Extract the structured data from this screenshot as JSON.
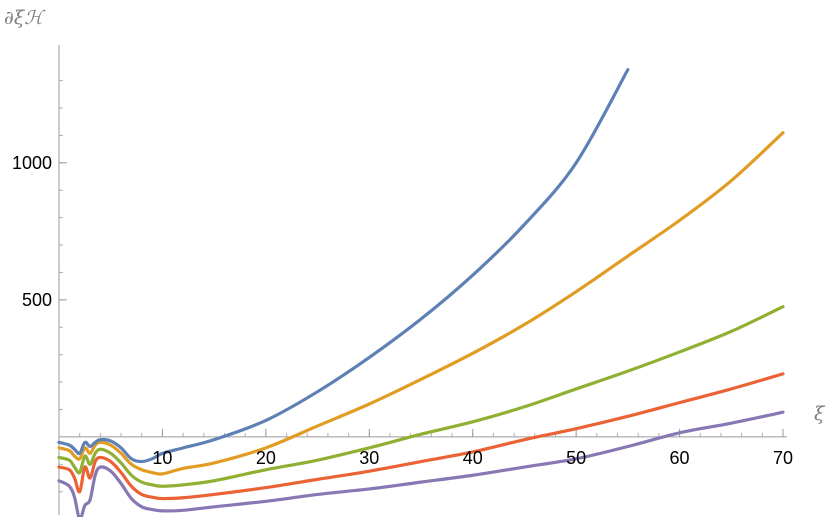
{
  "chart_data": {
    "type": "line",
    "xlabel": "ξ",
    "ylabel": "∂ξℋ",
    "xlim": [
      0,
      70
    ],
    "ylim": [
      -285,
      1430
    ],
    "x_ticks": [
      10,
      20,
      30,
      40,
      50,
      60,
      70
    ],
    "y_ticks": [
      500,
      1000
    ],
    "grid": false,
    "legend": "none",
    "series": [
      {
        "color": "#5E81B5",
        "points": [
          [
            0,
            -20
          ],
          [
            1,
            -30
          ],
          [
            1.5,
            -45
          ],
          [
            2,
            -60
          ],
          [
            2.5,
            -20
          ],
          [
            3,
            -35
          ],
          [
            3.5,
            -20
          ],
          [
            4,
            -10
          ],
          [
            5,
            -15
          ],
          [
            6,
            -40
          ],
          [
            7,
            -80
          ],
          [
            8,
            -90
          ],
          [
            9,
            -80
          ],
          [
            10,
            -60
          ],
          [
            12,
            -40
          ],
          [
            15,
            -10
          ],
          [
            20,
            60
          ],
          [
            25,
            165
          ],
          [
            30,
            290
          ],
          [
            35,
            430
          ],
          [
            40,
            590
          ],
          [
            45,
            775
          ],
          [
            50,
            1000
          ],
          [
            55,
            1340
          ]
        ]
      },
      {
        "color": "#E19C24",
        "points": [
          [
            0,
            -40
          ],
          [
            1,
            -50
          ],
          [
            1.5,
            -70
          ],
          [
            2,
            -80
          ],
          [
            2.5,
            -40
          ],
          [
            3,
            -60
          ],
          [
            3.5,
            -30
          ],
          [
            4,
            -20
          ],
          [
            5,
            -30
          ],
          [
            6,
            -60
          ],
          [
            7,
            -100
          ],
          [
            8,
            -120
          ],
          [
            9,
            -130
          ],
          [
            10,
            -135
          ],
          [
            12,
            -115
          ],
          [
            15,
            -95
          ],
          [
            20,
            -40
          ],
          [
            25,
            40
          ],
          [
            30,
            120
          ],
          [
            35,
            210
          ],
          [
            40,
            305
          ],
          [
            45,
            410
          ],
          [
            50,
            530
          ],
          [
            55,
            660
          ],
          [
            60,
            790
          ],
          [
            65,
            935
          ],
          [
            70,
            1110
          ]
        ]
      },
      {
        "color": "#8FB032",
        "points": [
          [
            0,
            -75
          ],
          [
            1,
            -85
          ],
          [
            1.5,
            -110
          ],
          [
            2,
            -130
          ],
          [
            2.5,
            -70
          ],
          [
            3,
            -100
          ],
          [
            3.5,
            -60
          ],
          [
            4,
            -45
          ],
          [
            5,
            -60
          ],
          [
            6,
            -95
          ],
          [
            7,
            -140
          ],
          [
            8,
            -165
          ],
          [
            9,
            -175
          ],
          [
            10,
            -180
          ],
          [
            12,
            -175
          ],
          [
            15,
            -160
          ],
          [
            20,
            -120
          ],
          [
            25,
            -85
          ],
          [
            30,
            -40
          ],
          [
            35,
            10
          ],
          [
            40,
            55
          ],
          [
            45,
            110
          ],
          [
            50,
            175
          ],
          [
            55,
            240
          ],
          [
            60,
            310
          ],
          [
            65,
            385
          ],
          [
            70,
            475
          ]
        ]
      },
      {
        "color": "#EB6235",
        "points": [
          [
            0,
            -110
          ],
          [
            1,
            -120
          ],
          [
            1.5,
            -150
          ],
          [
            2,
            -200
          ],
          [
            2.5,
            -110
          ],
          [
            3,
            -150
          ],
          [
            3.5,
            -90
          ],
          [
            4,
            -75
          ],
          [
            5,
            -90
          ],
          [
            6,
            -130
          ],
          [
            7,
            -180
          ],
          [
            8,
            -210
          ],
          [
            9,
            -220
          ],
          [
            10,
            -225
          ],
          [
            12,
            -222
          ],
          [
            15,
            -210
          ],
          [
            20,
            -185
          ],
          [
            25,
            -155
          ],
          [
            30,
            -125
          ],
          [
            35,
            -90
          ],
          [
            40,
            -55
          ],
          [
            45,
            -10
          ],
          [
            50,
            30
          ],
          [
            55,
            75
          ],
          [
            60,
            125
          ],
          [
            65,
            175
          ],
          [
            70,
            230
          ]
        ]
      },
      {
        "color": "#8778B3",
        "points": [
          [
            0,
            -160
          ],
          [
            1,
            -180
          ],
          [
            1.5,
            -220
          ],
          [
            2,
            -300
          ],
          [
            2.5,
            -250
          ],
          [
            3,
            -230
          ],
          [
            3.5,
            -140
          ],
          [
            4,
            -110
          ],
          [
            5,
            -125
          ],
          [
            6,
            -170
          ],
          [
            7,
            -225
          ],
          [
            8,
            -255
          ],
          [
            9,
            -265
          ],
          [
            10,
            -270
          ],
          [
            12,
            -268
          ],
          [
            15,
            -255
          ],
          [
            20,
            -235
          ],
          [
            25,
            -210
          ],
          [
            30,
            -190
          ],
          [
            35,
            -165
          ],
          [
            40,
            -140
          ],
          [
            45,
            -110
          ],
          [
            50,
            -80
          ],
          [
            55,
            -35
          ],
          [
            60,
            15
          ],
          [
            65,
            50
          ],
          [
            70,
            90
          ]
        ]
      }
    ]
  }
}
